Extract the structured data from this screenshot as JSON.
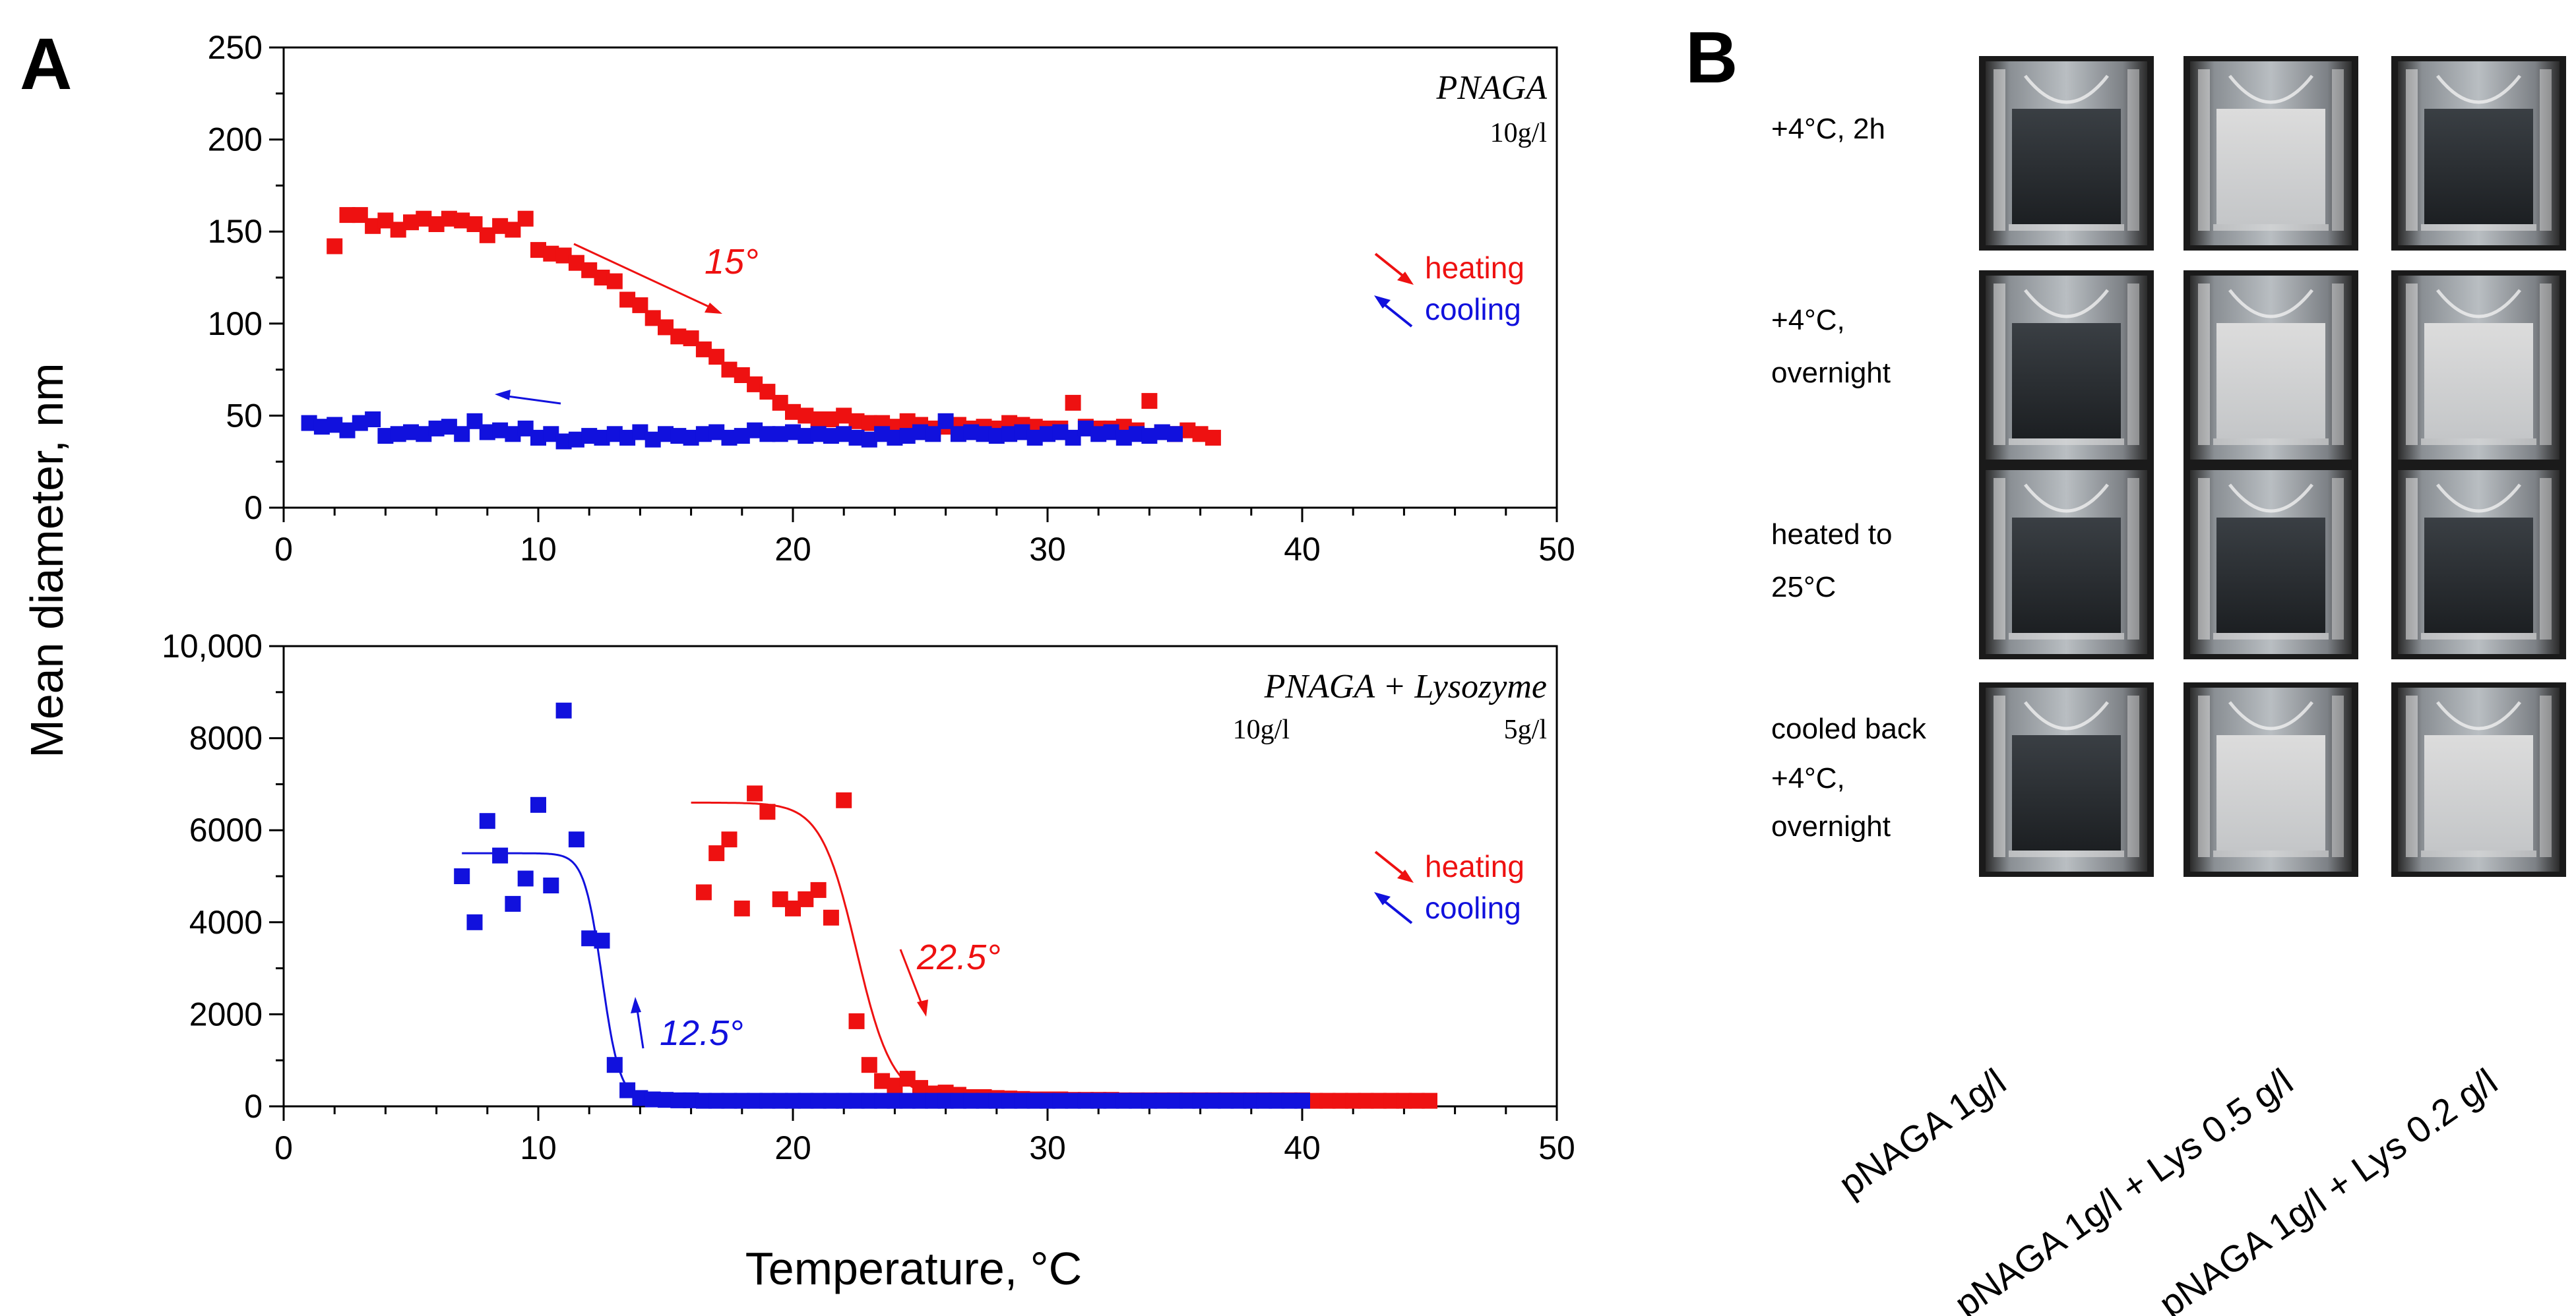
{
  "panels": {
    "a_label": "A",
    "b_label": "B"
  },
  "y_axis_title": "Mean diameter, nm",
  "x_axis_title": "Temperature, °C",
  "colors": {
    "heating": "#ee1111",
    "cooling": "#1111dd"
  },
  "chart_data": [
    {
      "type": "scatter",
      "sample": "PNAGA",
      "concentrations": [
        "10g/l"
      ],
      "xlim": [
        0,
        50
      ],
      "ylim": [
        0,
        250
      ],
      "xticks": [
        "0",
        "10",
        "20",
        "30",
        "40",
        "50"
      ],
      "yticks": [
        "0",
        "50",
        "100",
        "150",
        "200",
        "250"
      ],
      "legend": {
        "position": "right",
        "heating": "heating",
        "cooling": "cooling"
      },
      "annotations": [
        {
          "text": "15°",
          "series": "heating",
          "at_x": 17,
          "at_y": 123
        }
      ],
      "series": [
        {
          "name": "heating",
          "x": [
            2.0,
            2.5,
            3.0,
            3.5,
            4.0,
            4.5,
            5.0,
            5.5,
            6.0,
            6.5,
            7.0,
            7.5,
            8.0,
            8.5,
            9.0,
            9.5,
            10.0,
            10.5,
            11.0,
            11.5,
            12.0,
            12.5,
            13.0,
            13.5,
            14.0,
            14.5,
            15.0,
            15.5,
            16.0,
            16.5,
            17.0,
            17.5,
            18.0,
            18.5,
            19.0,
            19.5,
            20.0,
            20.5,
            21.0,
            21.5,
            22.0,
            22.5,
            23.0,
            23.5,
            24.0,
            24.5,
            25.0,
            25.5,
            26.0,
            26.5,
            27.0,
            27.5,
            28.0,
            28.5,
            29.0,
            29.5,
            30.0,
            30.5,
            31.0,
            31.5,
            32.0,
            32.5,
            33.0,
            33.5,
            34.0,
            34.5,
            35.0,
            35.5,
            36.0,
            36.5
          ],
          "y": [
            142,
            159,
            159,
            153,
            156,
            151,
            155,
            157,
            154,
            157,
            156,
            154,
            148,
            153,
            151,
            157,
            140,
            138,
            137,
            133,
            129,
            125,
            123,
            113,
            110,
            103,
            98,
            93,
            92,
            86,
            82,
            75,
            72,
            67,
            63,
            57,
            52,
            50,
            48,
            48,
            50,
            47,
            46,
            46,
            44,
            47,
            45,
            43,
            44,
            45,
            43,
            44,
            43,
            46,
            45,
            44,
            43,
            43,
            57,
            44,
            43,
            43,
            44,
            42,
            58,
            41,
            40,
            42,
            40,
            38
          ]
        },
        {
          "name": "cooling",
          "x": [
            1.0,
            1.5,
            2.0,
            2.5,
            3.0,
            3.5,
            4.0,
            4.5,
            5.0,
            5.5,
            6.0,
            6.5,
            7.0,
            7.5,
            8.0,
            8.5,
            9.0,
            9.5,
            10.0,
            10.5,
            11.0,
            11.5,
            12.0,
            12.5,
            13.0,
            13.5,
            14.0,
            14.5,
            15.0,
            15.5,
            16.0,
            16.5,
            17.0,
            17.5,
            18.0,
            18.5,
            19.0,
            19.5,
            20.0,
            20.5,
            21.0,
            21.5,
            22.0,
            22.5,
            23.0,
            23.5,
            24.0,
            24.5,
            25.0,
            25.5,
            26.0,
            26.5,
            27.0,
            27.5,
            28.0,
            28.5,
            29.0,
            29.5,
            30.0,
            30.5,
            31.0,
            31.5,
            32.0,
            32.5,
            33.0,
            33.5,
            34.0,
            34.5,
            35.0
          ],
          "y": [
            46,
            44,
            45,
            42,
            46,
            48,
            39,
            40,
            41,
            40,
            43,
            44,
            40,
            47,
            41,
            42,
            40,
            43,
            38,
            40,
            36,
            37,
            39,
            38,
            40,
            38,
            41,
            37,
            40,
            39,
            38,
            40,
            41,
            38,
            39,
            42,
            40,
            40,
            41,
            39,
            40,
            39,
            40,
            38,
            37,
            40,
            38,
            39,
            41,
            40,
            47,
            40,
            41,
            40,
            39,
            40,
            41,
            38,
            40,
            41,
            38,
            43,
            40,
            41,
            38,
            40,
            39,
            41,
            40
          ]
        }
      ]
    },
    {
      "type": "scatter",
      "sample": "PNAGA + Lysozyme",
      "concentrations": [
        "10g/l",
        "5g/l"
      ],
      "xlim": [
        0,
        50
      ],
      "ylim": [
        0,
        10000
      ],
      "xticks": [
        "0",
        "10",
        "20",
        "30",
        "40",
        "50"
      ],
      "yticks": [
        "0",
        "2000",
        "4000",
        "6000",
        "8000",
        "10,000"
      ],
      "legend": {
        "position": "right",
        "heating": "heating",
        "cooling": "cooling"
      },
      "annotations": [
        {
          "text": "22.5°",
          "series": "heating",
          "at_x": 25,
          "at_y": 1800
        },
        {
          "text": "12.5°",
          "series": "cooling",
          "at_x": 14,
          "at_y": 1600
        }
      ],
      "fit_curves": [
        {
          "series": "heating",
          "high": 6600,
          "low": 150,
          "midpoint": 22.5,
          "width": 0.7,
          "x_range": [
            16,
            40
          ]
        },
        {
          "series": "cooling",
          "high": 5500,
          "low": 120,
          "midpoint": 12.5,
          "width": 0.35,
          "x_range": [
            7,
            40
          ]
        }
      ],
      "series": [
        {
          "name": "heating",
          "x": [
            16.5,
            17.0,
            17.5,
            18.0,
            18.5,
            19.0,
            19.5,
            20.0,
            20.5,
            21.0,
            21.5,
            22.0,
            22.5,
            23.0,
            23.5,
            24.0,
            24.5,
            25.0,
            25.5,
            26.0,
            26.5,
            27.0,
            27.5,
            28.0,
            28.5,
            29.0,
            29.5,
            30.0,
            30.5,
            31.0,
            31.5,
            32.0,
            32.5,
            33.0,
            33.5,
            34.0,
            34.5,
            35.0,
            35.5,
            36.0,
            36.5,
            37.0,
            37.5,
            38.0,
            38.5,
            39.0,
            39.5,
            40.0,
            40.5,
            41.0,
            41.5,
            42.0,
            42.5,
            43.0,
            43.5,
            44.0,
            44.5,
            45.0
          ],
          "y": [
            4650,
            5500,
            5800,
            4300,
            6800,
            6400,
            4500,
            4300,
            4500,
            4700,
            4100,
            6650,
            1850,
            900,
            550,
            450,
            600,
            400,
            280,
            300,
            250,
            200,
            200,
            180,
            170,
            160,
            150,
            150,
            150,
            140,
            140,
            140,
            140,
            130,
            130,
            130,
            130,
            130,
            130,
            130,
            130,
            130,
            130,
            130,
            130,
            130,
            130,
            130,
            120,
            120,
            120,
            120,
            120,
            120,
            120,
            120,
            120,
            120
          ]
        },
        {
          "name": "cooling",
          "x": [
            7.0,
            7.5,
            8.0,
            8.5,
            9.0,
            9.5,
            10.0,
            10.5,
            11.0,
            11.5,
            12.0,
            12.5,
            13.0,
            13.5,
            14.0,
            14.5,
            15.0,
            15.5,
            16.0,
            16.5,
            17.0,
            17.5,
            18.0,
            18.5,
            19.0,
            19.5,
            20.0,
            20.5,
            21.0,
            21.5,
            22.0,
            22.5,
            23.0,
            23.5,
            24.0,
            24.5,
            25.0,
            25.5,
            26.0,
            26.5,
            27.0,
            27.5,
            28.0,
            28.5,
            29.0,
            29.5,
            30.0,
            30.5,
            31.0,
            31.5,
            32.0,
            32.5,
            33.0,
            33.5,
            34.0,
            34.5,
            35.0,
            35.5,
            36.0,
            36.5,
            37.0,
            37.5,
            38.0,
            38.5,
            39.0,
            39.5,
            40.0
          ],
          "y": [
            5000,
            4000,
            6200,
            5450,
            4400,
            4950,
            6550,
            4800,
            8600,
            5800,
            3650,
            3600,
            900,
            350,
            180,
            150,
            140,
            130,
            130,
            120,
            120,
            120,
            120,
            120,
            120,
            120,
            120,
            120,
            120,
            120,
            120,
            120,
            120,
            120,
            120,
            120,
            120,
            120,
            120,
            120,
            120,
            120,
            120,
            120,
            120,
            120,
            120,
            120,
            120,
            120,
            120,
            120,
            120,
            120,
            120,
            120,
            120,
            120,
            120,
            120,
            120,
            120,
            120,
            120,
            120,
            120,
            120
          ]
        }
      ]
    }
  ],
  "photo_grid": {
    "conditions": [
      "+4°C, 2h",
      "+4°C, overnight",
      "heated to 25°C",
      "cooled back +4°C, overnight"
    ],
    "columns": [
      "pNAGA 1g/l",
      "pNAGA 1g/l + Lys 0.5 g/l",
      "pNAGA 1g/l + Lys 0.2 g/l"
    ],
    "turbid": [
      [
        false,
        true,
        false
      ],
      [
        false,
        true,
        true
      ],
      [
        false,
        false,
        false
      ],
      [
        false,
        true,
        true
      ]
    ]
  }
}
